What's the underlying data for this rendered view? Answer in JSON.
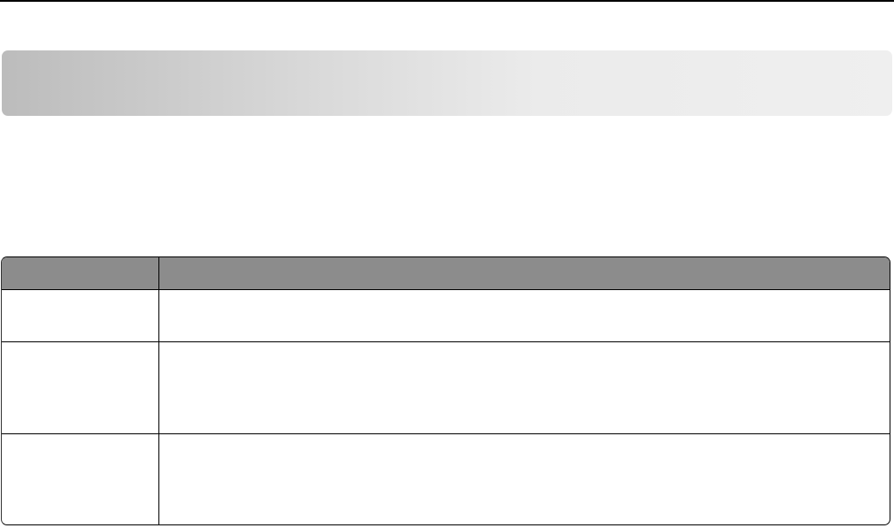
{
  "document": {
    "banner": {
      "color_start": "#bcbcbc",
      "color_end": "#efefef"
    },
    "table": {
      "header_color": "#8c8c8c",
      "headers": [
        "",
        ""
      ],
      "rows": [
        [
          "",
          ""
        ],
        [
          "",
          ""
        ],
        [
          "",
          ""
        ]
      ]
    }
  }
}
